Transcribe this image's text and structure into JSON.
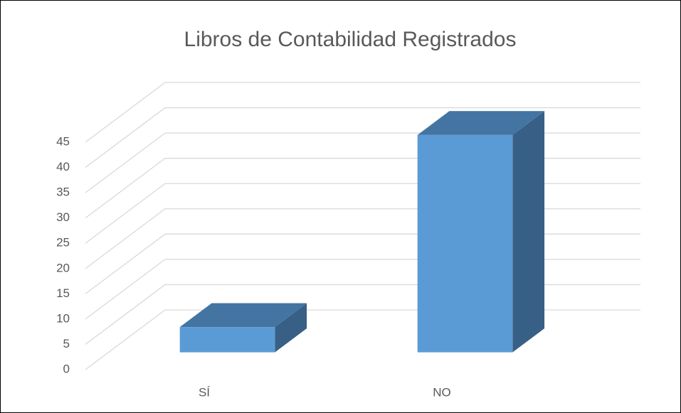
{
  "chart_data": {
    "type": "bar3d",
    "title": "Libros de Contabilidad Registrados",
    "categories": [
      "SÍ",
      "NO"
    ],
    "values": [
      5,
      43
    ],
    "color": "#5b9bd5",
    "ylim": [
      0,
      45
    ],
    "yticks": [
      0,
      5,
      10,
      15,
      20,
      25,
      30,
      35,
      40,
      45
    ],
    "grid": true
  }
}
